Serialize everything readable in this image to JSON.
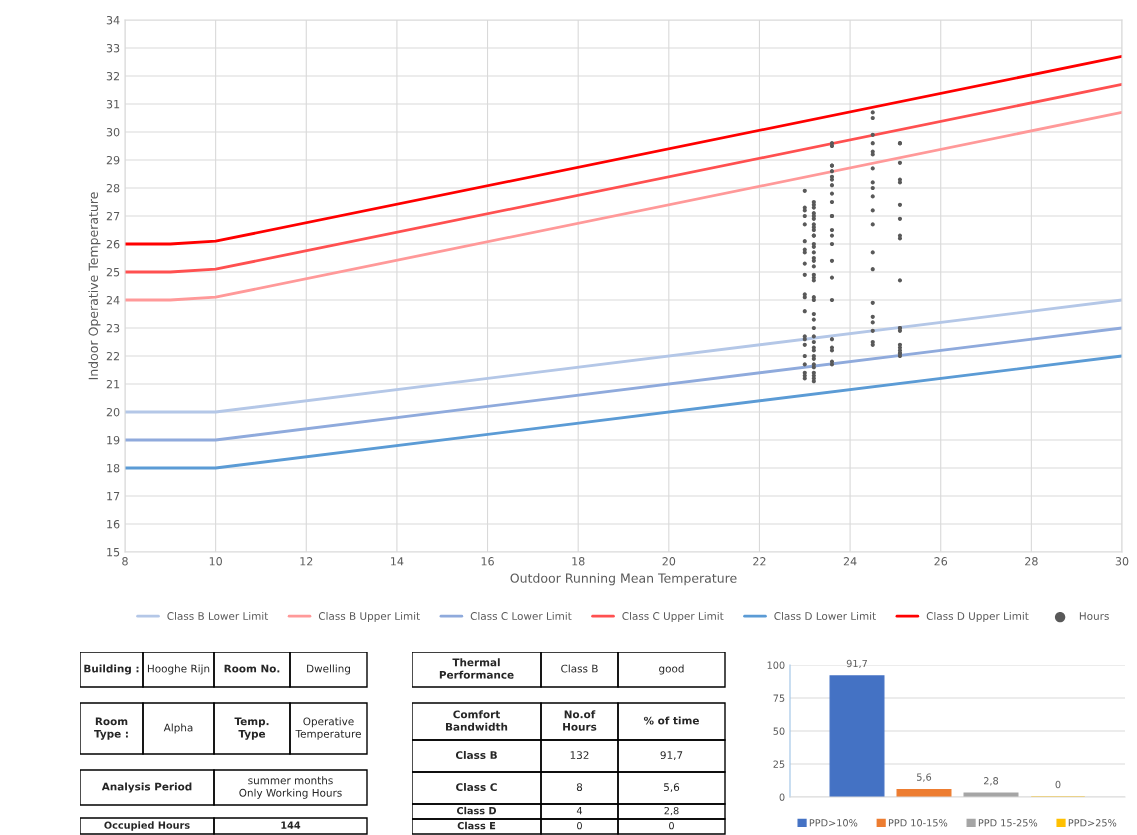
{
  "chart_data": [
    {
      "type": "line",
      "xlabel": "Outdoor Running Mean Temperature",
      "ylabel": "Indoor Operative Temperature",
      "xlim": [
        8,
        30
      ],
      "xticks": [
        8,
        10,
        12,
        14,
        16,
        18,
        20,
        22,
        24,
        26,
        28,
        30
      ],
      "ylim": [
        15,
        34
      ],
      "yticks": [
        15,
        16,
        17,
        18,
        19,
        20,
        21,
        22,
        23,
        24,
        25,
        26,
        27,
        28,
        29,
        30,
        31,
        32,
        33,
        34
      ],
      "grid": true,
      "legend": "bottom",
      "marker": "none",
      "line_style": "solid",
      "x": [
        8,
        9,
        10,
        30
      ],
      "series": [
        {
          "name": "Class B Lower Limit",
          "color": "#b4c7e7",
          "values": [
            20,
            20,
            20,
            24
          ]
        },
        {
          "name": "Class B Upper Limit",
          "color": "#ff9999",
          "values": [
            24,
            24,
            24.1,
            30.7
          ]
        },
        {
          "name": "Class C Lower Limit",
          "color": "#8faadc",
          "values": [
            19,
            19,
            19,
            23
          ]
        },
        {
          "name": "Class C Upper Limit",
          "color": "#ff5050",
          "values": [
            25,
            25,
            25.1,
            31.7
          ]
        },
        {
          "name": "Class D Lower Limit",
          "color": "#5b9bd5",
          "values": [
            18,
            18,
            18,
            22
          ]
        },
        {
          "name": "Class D Upper Limit",
          "color": "#ff0000",
          "values": [
            26,
            26,
            26.1,
            32.7
          ]
        },
        {
          "name": "Hours",
          "type": "scatter",
          "marker": "circle",
          "color": "#595959",
          "x": [
            23.0,
            23.0,
            23.0,
            23.0,
            23.0,
            23.0,
            23.0,
            23.0,
            23.0,
            23.0,
            23.0,
            23.0,
            23.0,
            23.0,
            23.0,
            23.0,
            23.0,
            23.0,
            23.0,
            23.0,
            23.0,
            23.2,
            23.2,
            23.2,
            23.2,
            23.2,
            23.2,
            23.2,
            23.2,
            23.2,
            23.2,
            23.2,
            23.2,
            23.2,
            23.2,
            23.2,
            23.2,
            23.2,
            23.2,
            23.2,
            23.2,
            23.2,
            23.2,
            23.2,
            23.2,
            23.2,
            23.2,
            23.2,
            23.2,
            23.2,
            23.2,
            23.2,
            23.2,
            23.2,
            23.2,
            23.2,
            23.2,
            23.2,
            23.6,
            23.6,
            23.6,
            23.6,
            23.6,
            23.6,
            23.6,
            23.6,
            23.6,
            23.6,
            23.6,
            23.6,
            23.6,
            23.6,
            23.6,
            23.6,
            23.6,
            23.6,
            23.6,
            23.6,
            23.6,
            23.6,
            23.6,
            24.5,
            24.5,
            24.5,
            24.5,
            24.5,
            24.5,
            24.5,
            24.5,
            24.5,
            24.5,
            24.5,
            24.5,
            24.5,
            24.5,
            24.5,
            24.5,
            24.5,
            24.5,
            24.5,
            24.5,
            25.1,
            25.1,
            25.1,
            25.1,
            25.1,
            25.1,
            25.1,
            25.1,
            25.1,
            25.1,
            25.1,
            25.1,
            25.1,
            25.1,
            25.1,
            25.1,
            25.1,
            25.1,
            25.1
          ],
          "values": [
            27.9,
            27.3,
            27.2,
            27.0,
            26.7,
            26.1,
            25.8,
            25.7,
            25.3,
            24.9,
            24.2,
            24.1,
            23.6,
            22.7,
            22.6,
            22.4,
            22.0,
            21.7,
            21.4,
            21.3,
            21.2,
            27.5,
            27.4,
            27.3,
            27.1,
            27.0,
            26.9,
            26.7,
            26.6,
            26.5,
            26.3,
            26.3,
            26.0,
            25.9,
            25.7,
            25.5,
            25.4,
            25.2,
            24.9,
            24.8,
            24.7,
            24.1,
            24.0,
            23.5,
            23.3,
            23.0,
            22.7,
            22.5,
            22.3,
            22.2,
            22.0,
            21.9,
            21.7,
            21.6,
            21.4,
            21.3,
            21.2,
            21.1,
            29.6,
            29.5,
            28.8,
            28.8,
            28.6,
            28.4,
            28.3,
            28.1,
            27.8,
            27.5,
            27.0,
            27.0,
            26.5,
            26.3,
            26.0,
            25.4,
            24.8,
            24.0,
            22.6,
            22.3,
            22.2,
            21.8,
            21.7,
            30.7,
            30.5,
            29.9,
            29.6,
            29.3,
            29.2,
            28.7,
            28.2,
            28.0,
            27.7,
            27.2,
            26.7,
            25.7,
            25.1,
            23.9,
            23.4,
            23.2,
            22.9,
            22.5,
            22.4,
            29.6,
            29.6,
            28.9,
            28.3,
            28.2,
            27.4,
            26.9,
            26.3,
            26.2,
            24.7,
            23.0,
            23.0,
            22.9,
            22.4,
            22.3,
            22.2,
            22.1,
            22.1,
            22.0
          ]
        }
      ]
    },
    {
      "type": "bar",
      "categories": [
        null
      ],
      "ylim": [
        0,
        100
      ],
      "yticks": [
        0,
        25,
        50,
        75,
        100
      ],
      "grid": "y",
      "legend": "bottom",
      "series": [
        {
          "name": "PPD>10%",
          "color": "#4472c4",
          "values": [
            91.7
          ],
          "value_labels": [
            "91,7"
          ]
        },
        {
          "name": "PPD 10-15%",
          "color": "#ed7d31",
          "values": [
            5.6
          ],
          "value_labels": [
            "5,6"
          ]
        },
        {
          "name": "PPD 15-25%",
          "color": "#a5a5a5",
          "values": [
            2.8
          ],
          "value_labels": [
            "2,8"
          ]
        },
        {
          "name": "PPD>25%",
          "color": "#ffc000",
          "values": [
            0
          ],
          "value_labels": [
            "0"
          ]
        }
      ]
    },
    {
      "type": "other",
      "annotations": [
        "Building :",
        "Hooghe Rijn",
        "Room No.",
        "Dwelling",
        "Room\nType :",
        "Alpha",
        "Temp.\nType",
        "Operative\nTemperature",
        "Analysis Period",
        "summer months\nOnly Working Hours",
        "Occupied Hours",
        "144"
      ]
    },
    {
      "type": "other",
      "annotations": [
        "Thermal\nPerformance",
        "Class B",
        "good",
        "Comfort\nBandwidth",
        "No.of\nHours",
        "% of time",
        "Class B",
        "132",
        "91,7",
        "Class C",
        "8",
        "5,6",
        "Class D",
        "4",
        "2,8",
        "Class E",
        "0",
        "0"
      ]
    }
  ]
}
